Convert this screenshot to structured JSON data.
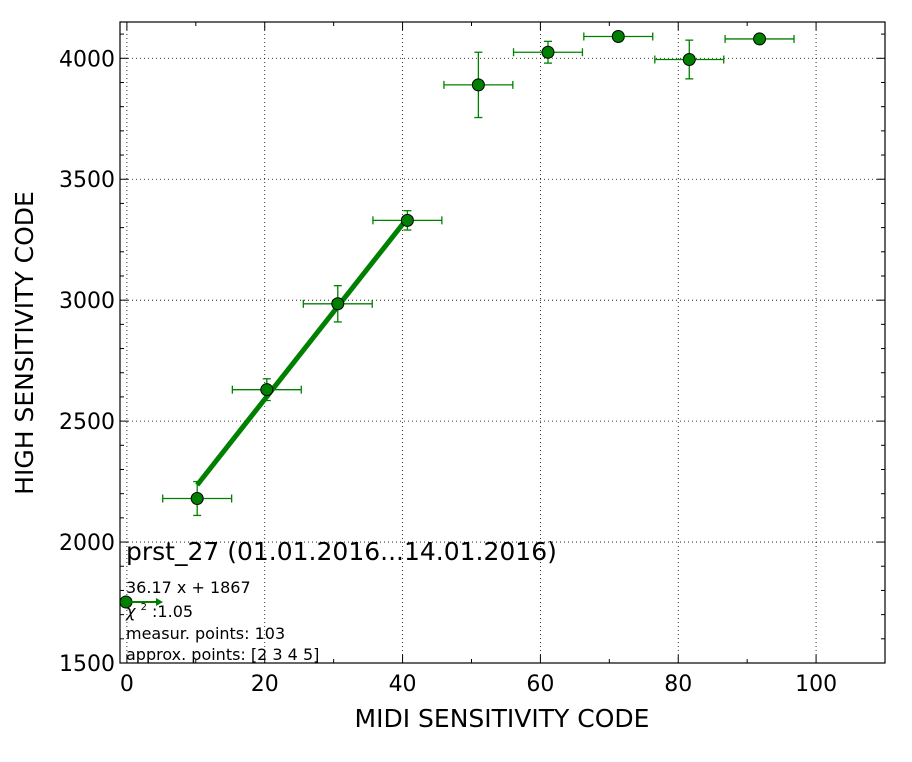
{
  "chart_data": {
    "type": "scatter",
    "xlabel": "MIDI SENSITIVITY CODE",
    "ylabel": "HIGH SENSITIVITY CODE",
    "xlim": [
      -1,
      110
    ],
    "ylim": [
      1500,
      4150
    ],
    "xticks": [
      0,
      20,
      40,
      60,
      80,
      100
    ],
    "yticks": [
      1500,
      2000,
      2500,
      3000,
      3500,
      4000
    ],
    "grid": true,
    "marker_color": "#008000",
    "fit_color": "#008000",
    "points": [
      {
        "x": 10.2,
        "y": 2180,
        "xerr": 5,
        "yerr": 70
      },
      {
        "x": 20.3,
        "y": 2630,
        "xerr": 5,
        "yerr": 45
      },
      {
        "x": 30.6,
        "y": 2985,
        "xerr": 5,
        "yerr": 75
      },
      {
        "x": 40.7,
        "y": 3330,
        "xerr": 5,
        "yerr": 40
      },
      {
        "x": 51.0,
        "y": 3890,
        "xerr": 5,
        "yerr": 135
      },
      {
        "x": 61.1,
        "y": 4025,
        "xerr": 5,
        "yerr": 45
      },
      {
        "x": 71.3,
        "y": 4090,
        "xerr": 5,
        "yerr": 0
      },
      {
        "x": 81.6,
        "y": 3995,
        "xerr": 5,
        "yerr": 80
      },
      {
        "x": 91.8,
        "y": 4080,
        "xerr": 5,
        "yerr": 0
      }
    ],
    "fit": {
      "slope": 36.17,
      "intercept": 1867,
      "x_range": [
        10.2,
        40.7
      ]
    },
    "annotations": {
      "title": "prst_27 (01.01.2016...14.01.2016)",
      "equation": "36.17 x + 1867",
      "chi2_symbol": "χ",
      "chi2_power": "2",
      "chi2_value": " :1.05",
      "measur_points": "measur. points: 103",
      "approx_points": "approx. points: [2 3 4 5]"
    }
  }
}
